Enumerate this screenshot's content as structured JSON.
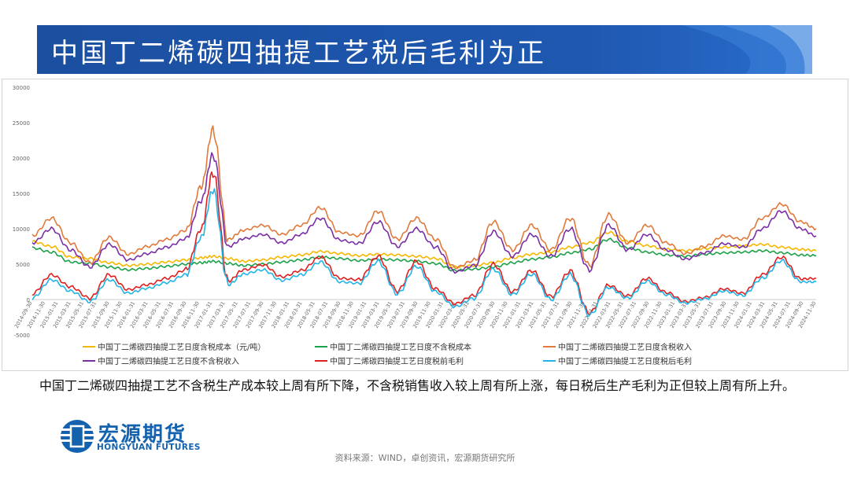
{
  "title": "中国丁二烯碳四抽提工艺税后毛利为正",
  "description": "中国丁二烯碳四抽提工艺不含税生产成本较上周有所下降，不含税销售收入较上周有所上涨，每日税后生产毛利为正但较上周有所上升。",
  "logo": {
    "cn": "宏源期货",
    "en": "HONGYUAN FUTURES"
  },
  "source": "资料来源：WIND，卓创资讯，宏源期货研究所",
  "colors": {
    "title_bar": "#1b4fa0",
    "cost_tax": "#f5b800",
    "cost_notax": "#1fa04a",
    "income_tax": "#e07a3a",
    "income_notax": "#7b2fa5",
    "profit_pretax": "#e02020",
    "profit_aftertax": "#22b4e6"
  },
  "chart_data": {
    "type": "line",
    "ylim": [
      -5000,
      30000
    ],
    "yticks": [
      "30000",
      "25000",
      "20000",
      "15000",
      "10000",
      "5000",
      "0",
      "-5000"
    ],
    "xticks": [
      "2014-09-30",
      "2014-11-30",
      "2015-01-31",
      "2015-03-31",
      "2015-05-31",
      "2015-07-31",
      "2015-09-30",
      "2015-11-30",
      "2016-01-31",
      "2016-03-31",
      "2016-05-31",
      "2016-07-31",
      "2016-09-30",
      "2016-11-30",
      "2017-01-31",
      "2017-03-31",
      "2017-05-31",
      "2017-07-31",
      "2017-09-30",
      "2017-11-30",
      "2018-01-31",
      "2018-03-31",
      "2018-05-31",
      "2018-07-31",
      "2018-09-30",
      "2018-11-30",
      "2019-01-31",
      "2019-03-31",
      "2019-05-31",
      "2019-07-31",
      "2019-09-30",
      "2019-11-30",
      "2020-01-31",
      "2020-03-31",
      "2020-05-31",
      "2020-07-31",
      "2020-09-30",
      "2020-11-30",
      "2021-01-31",
      "2021-03-31",
      "2021-05-31",
      "2021-07-31",
      "2021-09-30",
      "2021-11-30",
      "2022-01-31",
      "2022-03-31",
      "2022-05-31",
      "2022-07-31",
      "2022-09-30",
      "2022-11-30",
      "2023-01-31",
      "2023-03-31",
      "2023-05-31",
      "2023-07-31",
      "2023-09-30",
      "2023-11-30",
      "2024-01-31",
      "2024-03-31",
      "2024-05-31",
      "2024-07-31",
      "2024-09-30",
      "2024-11-30"
    ],
    "x_start": 2014.75,
    "x_end": 2024.95,
    "x": [
      2014.75,
      2015.0,
      2015.25,
      2015.5,
      2015.75,
      2016.0,
      2016.25,
      2016.5,
      2016.75,
      2016.95,
      2017.1,
      2017.3,
      2017.5,
      2017.75,
      2018.0,
      2018.25,
      2018.5,
      2018.75,
      2019.0,
      2019.25,
      2019.5,
      2019.75,
      2020.0,
      2020.25,
      2020.5,
      2020.75,
      2021.0,
      2021.25,
      2021.5,
      2021.75,
      2022.0,
      2022.25,
      2022.5,
      2022.75,
      2023.0,
      2023.25,
      2023.5,
      2023.75,
      2024.0,
      2024.25,
      2024.5,
      2024.75,
      2024.95
    ],
    "series": [
      {
        "name": "中国丁二烯碳四抽提工艺日度含税成本（元/吨）",
        "key": "cost_tax",
        "values": [
          8200,
          7500,
          6000,
          5800,
          5200,
          4800,
          5000,
          5300,
          5600,
          5900,
          6100,
          5800,
          5400,
          5600,
          6000,
          6300,
          6800,
          6500,
          6200,
          6400,
          6300,
          6100,
          5800,
          4600,
          4800,
          5200,
          5900,
          6400,
          6700,
          7400,
          8000,
          9500,
          8200,
          7600,
          7100,
          6900,
          7200,
          7400,
          7600,
          7800,
          7400,
          7100,
          6900
        ]
      },
      {
        "name": "中国丁二烯碳四抽提工艺日度不含税成本",
        "key": "cost_notax",
        "values": [
          7300,
          6700,
          5300,
          5100,
          4600,
          4200,
          4400,
          4700,
          5000,
          5200,
          5400,
          5100,
          4800,
          5000,
          5300,
          5600,
          6000,
          5800,
          5500,
          5700,
          5600,
          5400,
          5100,
          4100,
          4300,
          4600,
          5200,
          5700,
          6000,
          6600,
          7100,
          8500,
          7300,
          6700,
          6300,
          6100,
          6400,
          6600,
          6700,
          6900,
          6600,
          6300,
          6200
        ]
      },
      {
        "name": "中国丁二烯碳四抽提工艺日度含税收入",
        "key": "income_tax",
        "values": [
          9000,
          11500,
          8000,
          5200,
          8800,
          6400,
          7500,
          8500,
          9800,
          16000,
          24000,
          8500,
          9800,
          10500,
          9200,
          10500,
          13000,
          9500,
          9000,
          12500,
          8500,
          11500,
          8500,
          4500,
          5500,
          11000,
          7000,
          10500,
          7000,
          11500,
          4800,
          12000,
          8000,
          10500,
          8000,
          6500,
          7500,
          9000,
          8500,
          11500,
          13500,
          11000,
          10000
        ]
      },
      {
        "name": "中国丁二烯碳四抽提工艺日度不含税收入",
        "key": "income_notax",
        "values": [
          8000,
          10000,
          7000,
          4600,
          7800,
          5600,
          6500,
          7400,
          8600,
          14000,
          20500,
          7500,
          8600,
          9200,
          8000,
          9200,
          11500,
          8400,
          7900,
          11000,
          7500,
          10000,
          7400,
          3900,
          4800,
          9600,
          6100,
          9200,
          6100,
          10000,
          4200,
          10500,
          7000,
          9200,
          7000,
          5700,
          6600,
          7900,
          7400,
          10000,
          12500,
          10000,
          9000
        ]
      },
      {
        "name": "中国丁二烯碳四抽提工艺日度税前毛利",
        "key": "profit_pretax",
        "values": [
          800,
          3500,
          1800,
          200,
          3500,
          1400,
          2100,
          3000,
          4200,
          10000,
          18000,
          2600,
          4200,
          4900,
          3200,
          4100,
          6000,
          3000,
          2800,
          6100,
          1200,
          5400,
          1500,
          -600,
          600,
          5000,
          1100,
          4100,
          400,
          4000,
          -1900,
          2000,
          500,
          3000,
          1000,
          -300,
          300,
          1500,
          900,
          3500,
          6000,
          2900,
          3000
        ]
      },
      {
        "name": "中国丁二烯碳四抽提工艺日度税后毛利",
        "key": "profit_aftertax",
        "values": [
          200,
          2800,
          1200,
          -300,
          2800,
          900,
          1600,
          2400,
          3500,
          8800,
          15500,
          2100,
          3600,
          4200,
          2700,
          3500,
          5300,
          2500,
          2300,
          5400,
          800,
          4700,
          1100,
          -1000,
          200,
          4300,
          700,
          3600,
          0,
          3500,
          -2200,
          1700,
          200,
          2600,
          700,
          -500,
          100,
          1200,
          600,
          3000,
          5500,
          2500,
          2500
        ]
      }
    ]
  }
}
